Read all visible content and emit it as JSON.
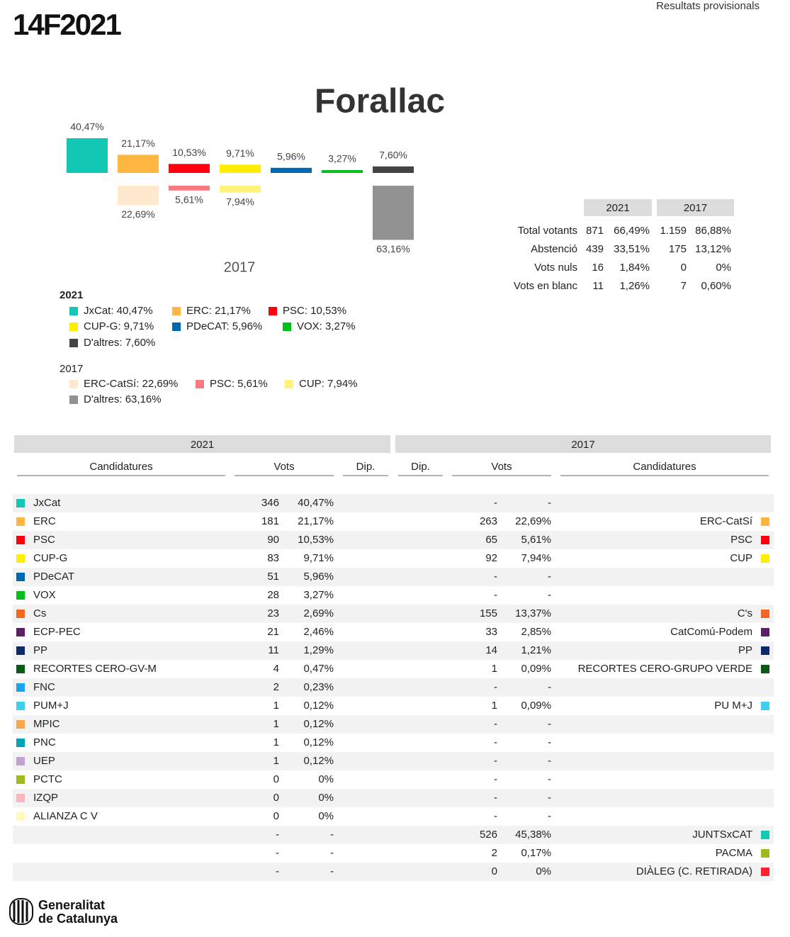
{
  "header": {
    "logo": "14F2021",
    "status": "Resultats provisionals"
  },
  "title": "Forallac",
  "chart_data": {
    "type": "bar",
    "xlabel": "2017",
    "series": [
      {
        "name": "2021",
        "values": [
          40.47,
          21.17,
          10.53,
          9.71,
          5.96,
          3.27,
          7.6
        ],
        "value_labels": [
          "40,47%",
          "21,17%",
          "10,53%",
          "9,71%",
          "5,96%",
          "3,27%",
          "7,60%"
        ],
        "colors": [
          "#12c7b4",
          "#ffb640",
          "#ff0010",
          "#ffee00",
          "#0067b1",
          "#00bf1a",
          "#444444"
        ],
        "legend_labels": [
          "JxCat: 40,47%",
          "ERC: 21,17%",
          "PSC: 10,53%",
          "CUP-G: 9,71%",
          "PDeCAT: 5,96%",
          "VOX: 3,27%",
          "D'altres: 7,60%"
        ]
      },
      {
        "name": "2017",
        "values": [
          null,
          22.69,
          5.61,
          7.94,
          null,
          null,
          63.16
        ],
        "value_labels": [
          null,
          "22,69%",
          "5,61%",
          "7,94%",
          null,
          null,
          "63,16%"
        ],
        "colors": [
          null,
          "#ffe9cc",
          "#f87a80",
          "#fff27a",
          null,
          null,
          "#919191"
        ],
        "legend_labels": [
          null,
          "ERC-CatSí: 22,69%",
          "PSC: 5,61%",
          "CUP: 7,94%",
          null,
          null,
          "D'altres: 63,16%"
        ]
      }
    ]
  },
  "summary": {
    "columns": [
      "2021",
      "2017"
    ],
    "rows": [
      {
        "label": "Total votants",
        "cells": [
          "871",
          "66,49%",
          "1.159",
          "86,88%"
        ]
      },
      {
        "label": "Abstenció",
        "cells": [
          "439",
          "33,51%",
          "175",
          "13,12%"
        ]
      },
      {
        "label": "Vots nuls",
        "cells": [
          "16",
          "1,84%",
          "0",
          "0%"
        ]
      },
      {
        "label": "Vots en blanc",
        "cells": [
          "11",
          "1,26%",
          "7",
          "0,60%"
        ]
      }
    ]
  },
  "results": {
    "columns": [
      "2021",
      "2017"
    ],
    "headers": [
      "Candidatures",
      "Vots",
      "Dip.",
      "Dip.",
      "Vots",
      "Candidatures"
    ],
    "rows": [
      {
        "party": "JxCat",
        "color": "#12c7b4",
        "votes": "346",
        "pct": "40,47%",
        "votes_2017": "-",
        "pct_2017": "-"
      },
      {
        "party": "ERC",
        "color": "#ffb640",
        "votes": "181",
        "pct": "21,17%",
        "votes_2017": "263",
        "pct_2017": "22,69%",
        "party_2017": "ERC-CatSí",
        "color_2017": "#ffb640"
      },
      {
        "party": "PSC",
        "color": "#ff0010",
        "votes": "90",
        "pct": "10,53%",
        "votes_2017": "65",
        "pct_2017": "5,61%",
        "party_2017": "PSC",
        "color_2017": "#ff0010"
      },
      {
        "party": "CUP-G",
        "color": "#ffee00",
        "votes": "83",
        "pct": "9,71%",
        "votes_2017": "92",
        "pct_2017": "7,94%",
        "party_2017": "CUP",
        "color_2017": "#ffee00"
      },
      {
        "party": "PDeCAT",
        "color": "#0067b1",
        "votes": "51",
        "pct": "5,96%",
        "votes_2017": "-",
        "pct_2017": "-"
      },
      {
        "party": "VOX",
        "color": "#00bf1a",
        "votes": "28",
        "pct": "3,27%",
        "votes_2017": "-",
        "pct_2017": "-"
      },
      {
        "party": "Cs",
        "color": "#f26722",
        "votes": "23",
        "pct": "2,69%",
        "votes_2017": "155",
        "pct_2017": "13,37%",
        "party_2017": "C's",
        "color_2017": "#f26722"
      },
      {
        "party": "ECP-PEC",
        "color": "#5b1f66",
        "votes": "21",
        "pct": "2,46%",
        "votes_2017": "33",
        "pct_2017": "2,85%",
        "party_2017": "CatComú-Podem",
        "color_2017": "#5b1f66"
      },
      {
        "party": "PP",
        "color": "#0b2a6b",
        "votes": "11",
        "pct": "1,29%",
        "votes_2017": "14",
        "pct_2017": "1,21%",
        "party_2017": "PP",
        "color_2017": "#0b2a6b"
      },
      {
        "party": "RECORTES CERO-GV-M",
        "color": "#0c5a16",
        "votes": "4",
        "pct": "0,47%",
        "votes_2017": "1",
        "pct_2017": "0,09%",
        "party_2017": "RECORTES CERO-GRUPO VERDE",
        "color_2017": "#0c5a16"
      },
      {
        "party": "FNC",
        "color": "#1aa3ee",
        "votes": "2",
        "pct": "0,23%",
        "votes_2017": "-",
        "pct_2017": "-"
      },
      {
        "party": "PUM+J",
        "color": "#3fd0f0",
        "votes": "1",
        "pct": "0,12%",
        "votes_2017": "1",
        "pct_2017": "0,09%",
        "party_2017": "PU M+J",
        "color_2017": "#3fd0f0"
      },
      {
        "party": "MPIC",
        "color": "#f7a84a",
        "votes": "1",
        "pct": "0,12%",
        "votes_2017": "-",
        "pct_2017": "-"
      },
      {
        "party": "PNC",
        "color": "#00a5b5",
        "votes": "1",
        "pct": "0,12%",
        "votes_2017": "-",
        "pct_2017": "-"
      },
      {
        "party": "UEP",
        "color": "#bfa3d4",
        "votes": "1",
        "pct": "0,12%",
        "votes_2017": "-",
        "pct_2017": "-"
      },
      {
        "party": "PCTC",
        "color": "#a3b81a",
        "votes": "0",
        "pct": "0%",
        "votes_2017": "-",
        "pct_2017": "-"
      },
      {
        "party": "IZQP",
        "color": "#f7b8bd",
        "votes": "0",
        "pct": "0%",
        "votes_2017": "-",
        "pct_2017": "-"
      },
      {
        "party": "ALIANZA C V",
        "color": "#fff8bf",
        "votes": "0",
        "pct": "0%",
        "votes_2017": "-",
        "pct_2017": "-"
      },
      {
        "votes": "-",
        "pct": "-",
        "votes_2017": "526",
        "pct_2017": "45,38%",
        "party_2017": "JUNTSxCAT",
        "color_2017": "#12c7b4"
      },
      {
        "votes": "-",
        "pct": "-",
        "votes_2017": "2",
        "pct_2017": "0,17%",
        "party_2017": "PACMA",
        "color_2017": "#a3b81a"
      },
      {
        "votes": "-",
        "pct": "-",
        "votes_2017": "0",
        "pct_2017": "0%",
        "party_2017": "DIÀLEG (C. RETIRADA)",
        "color_2017": "#ff2233"
      }
    ]
  },
  "footer": {
    "lines": [
      "Generalitat",
      "de Catalunya"
    ]
  }
}
